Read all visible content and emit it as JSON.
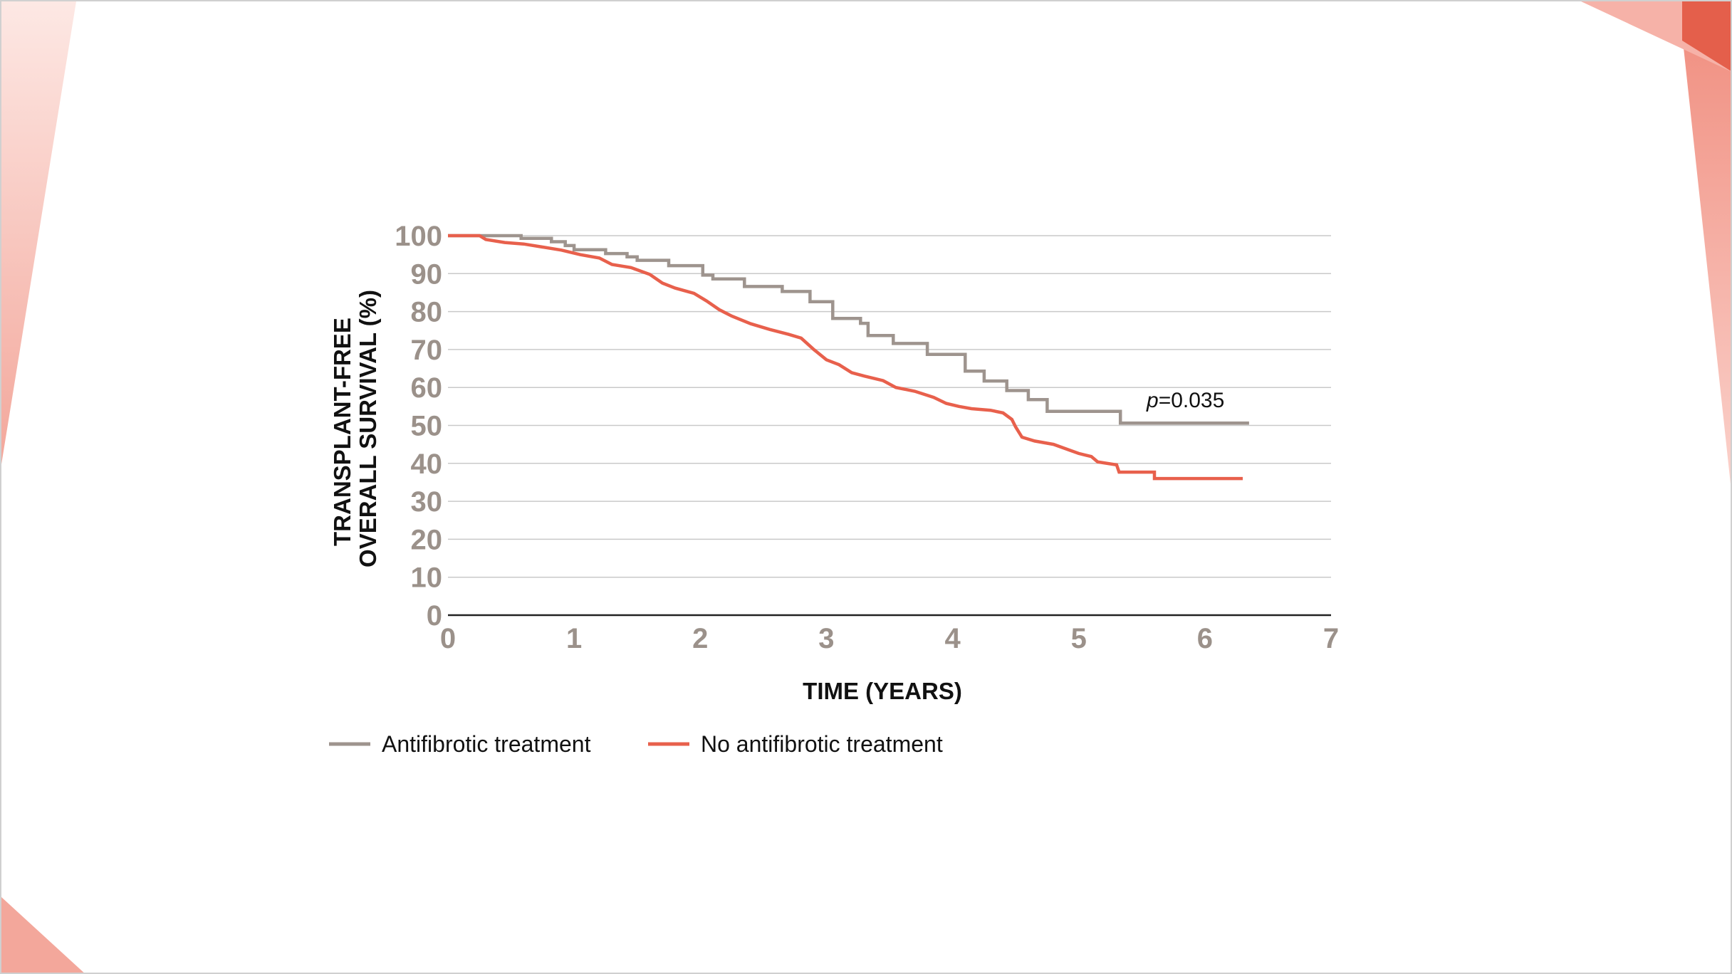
{
  "colors": {
    "antifibrotic": "#9e948e",
    "no_antifibrotic": "#e8604c",
    "grid": "#c9c9c9",
    "axis": "#222222",
    "tick": "#9b918a",
    "accent_light": "#f6c3bb",
    "accent": "#e8604c"
  },
  "chart_data": {
    "type": "line",
    "step": true,
    "xlabel": "TIME (YEARS)",
    "ylabel_lines": [
      "TRANSPLANT-FREE",
      "OVERALL SURVIVAL (%)"
    ],
    "xlim": [
      0,
      7
    ],
    "ylim": [
      0,
      100
    ],
    "xticks": [
      "0",
      "1",
      "2",
      "3",
      "4",
      "5",
      "6",
      "7"
    ],
    "yticks": [
      "0",
      "10",
      "20",
      "30",
      "40",
      "50",
      "60",
      "70",
      "80",
      "90",
      "100"
    ],
    "grid": true,
    "legend_position": "bottom-left",
    "annotation": {
      "italic": "p",
      "rest": "=0.035"
    },
    "series": [
      {
        "name": "Antifibrotic treatment",
        "color_key": "antifibrotic",
        "points": [
          [
            0,
            100
          ],
          [
            0.58,
            100
          ],
          [
            0.58,
            99.3
          ],
          [
            0.82,
            99.3
          ],
          [
            0.82,
            98.4
          ],
          [
            0.93,
            98.4
          ],
          [
            0.93,
            97.4
          ],
          [
            1.0,
            97.4
          ],
          [
            1.0,
            96.3
          ],
          [
            1.25,
            96.3
          ],
          [
            1.25,
            95.3
          ],
          [
            1.42,
            95.3
          ],
          [
            1.42,
            94.4
          ],
          [
            1.5,
            94.4
          ],
          [
            1.5,
            93.5
          ],
          [
            1.75,
            93.5
          ],
          [
            1.75,
            92.1
          ],
          [
            2.02,
            92.1
          ],
          [
            2.02,
            89.6
          ],
          [
            2.1,
            89.6
          ],
          [
            2.1,
            88.6
          ],
          [
            2.35,
            88.6
          ],
          [
            2.35,
            86.6
          ],
          [
            2.65,
            86.6
          ],
          [
            2.65,
            85.3
          ],
          [
            2.87,
            85.3
          ],
          [
            2.87,
            82.6
          ],
          [
            3.05,
            82.6
          ],
          [
            3.05,
            78.2
          ],
          [
            3.27,
            78.2
          ],
          [
            3.27,
            76.9
          ],
          [
            3.33,
            76.9
          ],
          [
            3.33,
            73.7
          ],
          [
            3.53,
            73.7
          ],
          [
            3.53,
            71.6
          ],
          [
            3.8,
            71.6
          ],
          [
            3.8,
            68.7
          ],
          [
            4.1,
            68.7
          ],
          [
            4.1,
            64.3
          ],
          [
            4.25,
            64.3
          ],
          [
            4.25,
            61.7
          ],
          [
            4.43,
            61.7
          ],
          [
            4.43,
            59.2
          ],
          [
            4.6,
            59.2
          ],
          [
            4.6,
            56.8
          ],
          [
            4.75,
            56.8
          ],
          [
            4.75,
            53.7
          ],
          [
            5.33,
            53.7
          ],
          [
            5.33,
            50.6
          ],
          [
            6.35,
            50.6
          ]
        ]
      },
      {
        "name": "No antifibrotic treatment",
        "color_key": "no_antifibrotic",
        "points": [
          [
            0,
            100
          ],
          [
            0.25,
            100
          ],
          [
            0.3,
            99.0
          ],
          [
            0.45,
            98.2
          ],
          [
            0.6,
            97.8
          ],
          [
            0.75,
            97.0
          ],
          [
            0.9,
            96.2
          ],
          [
            1.05,
            95.0
          ],
          [
            1.2,
            94.1
          ],
          [
            1.3,
            92.4
          ],
          [
            1.45,
            91.6
          ],
          [
            1.6,
            89.8
          ],
          [
            1.7,
            87.5
          ],
          [
            1.8,
            86.2
          ],
          [
            1.95,
            84.8
          ],
          [
            2.05,
            82.8
          ],
          [
            2.15,
            80.5
          ],
          [
            2.25,
            78.8
          ],
          [
            2.4,
            76.8
          ],
          [
            2.55,
            75.3
          ],
          [
            2.7,
            74.0
          ],
          [
            2.8,
            73.0
          ],
          [
            2.9,
            70.0
          ],
          [
            3.0,
            67.3
          ],
          [
            3.1,
            66.0
          ],
          [
            3.2,
            63.9
          ],
          [
            3.3,
            63.0
          ],
          [
            3.45,
            61.8
          ],
          [
            3.55,
            60.0
          ],
          [
            3.7,
            59.0
          ],
          [
            3.85,
            57.4
          ],
          [
            3.95,
            55.8
          ],
          [
            4.05,
            55.0
          ],
          [
            4.15,
            54.4
          ],
          [
            4.3,
            54.0
          ],
          [
            4.4,
            53.3
          ],
          [
            4.47,
            51.6
          ],
          [
            4.5,
            49.6
          ],
          [
            4.55,
            46.9
          ],
          [
            4.65,
            45.9
          ],
          [
            4.8,
            45.0
          ],
          [
            4.9,
            43.8
          ],
          [
            5.0,
            42.6
          ],
          [
            5.1,
            41.8
          ],
          [
            5.15,
            40.4
          ],
          [
            5.3,
            39.6
          ],
          [
            5.32,
            37.7
          ],
          [
            5.6,
            37.7
          ],
          [
            5.6,
            36.0
          ],
          [
            6.3,
            36.0
          ]
        ]
      }
    ]
  }
}
